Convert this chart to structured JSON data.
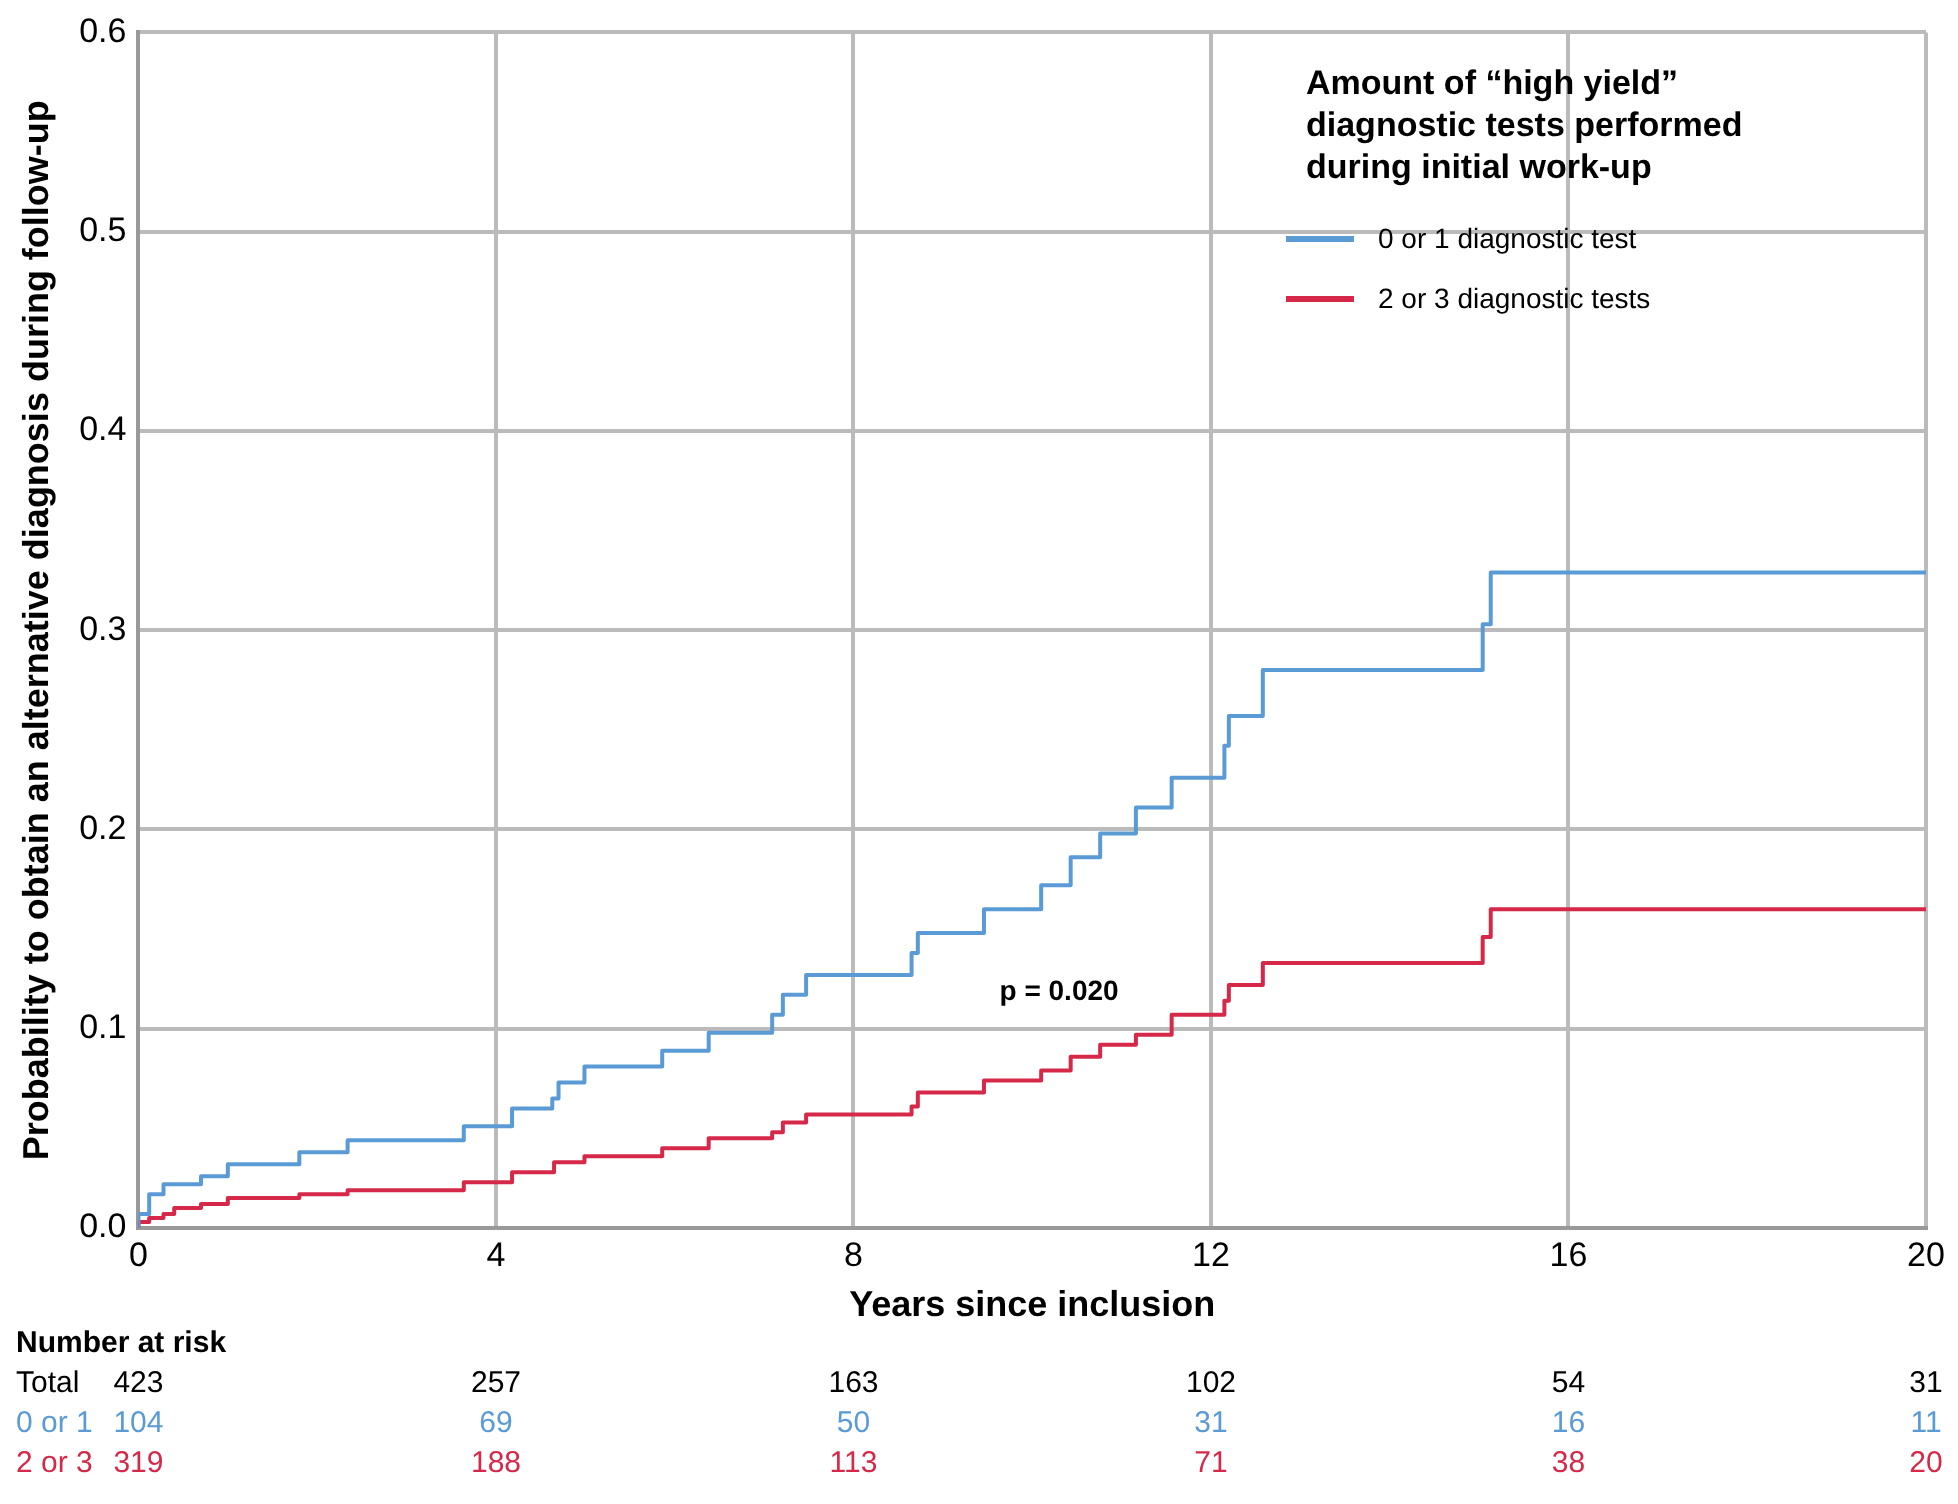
{
  "chart_data": {
    "type": "step",
    "ylabel": "Probability to obtain an alternative diagnosis during follow-up",
    "xlabel": "Years since inclusion",
    "legend_title": "Amount of “high yield” diagnostic tests performed during initial work-up",
    "legend": "top right",
    "grid": true,
    "xlim": [
      0,
      20
    ],
    "xticks": [
      0,
      4,
      8,
      12,
      16,
      20
    ],
    "ylim": [
      0,
      0.6
    ],
    "yticks": [
      {
        "value": 0,
        "label": "0.0"
      },
      0.1,
      0.2,
      0.3,
      0.4,
      0.5,
      0.6
    ],
    "series": [
      {
        "name": "0 or 1 diagnostic test",
        "color": "#5b9bd5",
        "x": [
          0,
          0.12,
          0.28,
          0.7,
          1.0,
          1.8,
          2.34,
          3.64,
          4.18,
          4.63,
          4.7,
          4.99,
          5.86,
          6.38,
          7.09,
          7.21,
          7.47,
          8.65,
          8.72,
          9.46,
          10.1,
          10.43,
          10.76,
          11.16,
          11.56,
          12.15,
          12.2,
          12.58,
          15.04,
          15.13,
          15.86,
          20
        ],
        "values": [
          0,
          0.007,
          0.017,
          0.022,
          0.026,
          0.032,
          0.038,
          0.044,
          0.051,
          0.06,
          0.065,
          0.073,
          0.081,
          0.089,
          0.098,
          0.107,
          0.117,
          0.127,
          0.138,
          0.148,
          0.16,
          0.172,
          0.186,
          0.198,
          0.211,
          0.226,
          0.242,
          0.257,
          0.28,
          0.303,
          0.329,
          0.329
        ]
      },
      {
        "name": "2 or 3 diagnostic tests",
        "color": "#d6294a",
        "x": [
          0,
          0.12,
          0.28,
          0.4,
          0.7,
          1.0,
          1.8,
          2.34,
          3.64,
          4.18,
          4.65,
          4.99,
          5.86,
          6.38,
          7.09,
          7.21,
          7.47,
          8.65,
          8.72,
          9.46,
          10.1,
          10.43,
          10.76,
          11.16,
          11.56,
          12.15,
          12.2,
          12.58,
          15.04,
          15.13,
          15.86,
          20
        ],
        "values": [
          0,
          0.003,
          0.005,
          0.007,
          0.01,
          0.012,
          0.015,
          0.017,
          0.019,
          0.023,
          0.028,
          0.033,
          0.036,
          0.04,
          0.045,
          0.048,
          0.053,
          0.057,
          0.061,
          0.068,
          0.074,
          0.079,
          0.086,
          0.092,
          0.097,
          0.107,
          0.114,
          0.122,
          0.133,
          0.146,
          0.16,
          0.16
        ]
      }
    ],
    "annotations": [
      "p = 0.020",
      "Number at risk",
      "Total",
      "423",
      "257",
      "163",
      "102",
      "54",
      "31",
      "0 or 1",
      "104",
      "69",
      "50",
      "31",
      "16",
      "11",
      "2 or 3",
      "319",
      "188",
      "113",
      "71",
      "38",
      "20"
    ]
  }
}
